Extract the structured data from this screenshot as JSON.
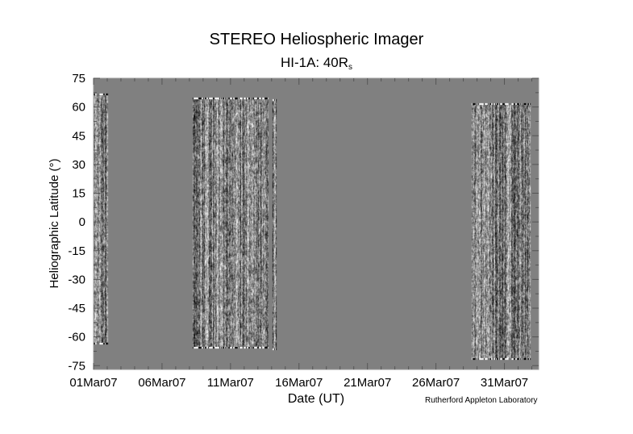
{
  "chart_data": {
    "type": "heatmap",
    "title": "STEREO Heliospheric Imager",
    "subtitle_main": "HI-1A: 40R",
    "subtitle_sub": "s",
    "xlabel": "Date (UT)",
    "ylabel": "Heliographic Latitude (°)",
    "x_unit": "days since 01Mar07",
    "xlim": [
      0,
      32.5
    ],
    "ylim": [
      -77,
      75
    ],
    "x_ticks": [
      {
        "value": 0,
        "label": "01Mar07"
      },
      {
        "value": 5,
        "label": "06Mar07"
      },
      {
        "value": 10,
        "label": "11Mar07"
      },
      {
        "value": 15,
        "label": "16Mar07"
      },
      {
        "value": 20,
        "label": "21Mar07"
      },
      {
        "value": 25,
        "label": "26Mar07"
      },
      {
        "value": 30,
        "label": "31Mar07"
      }
    ],
    "y_ticks": [
      75,
      60,
      45,
      30,
      15,
      0,
      -15,
      -30,
      -45,
      -60,
      -75
    ],
    "background_color": "#808080",
    "data_blocks": [
      {
        "start_day": 0.0,
        "end_day": 1.05,
        "lat_min": -64,
        "lat_max": 67
      },
      {
        "start_day": 7.25,
        "end_day": 12.8,
        "lat_min": -66,
        "lat_max": 65
      },
      {
        "start_day": 13.1,
        "end_day": 13.35,
        "lat_min": -67,
        "lat_max": 64
      },
      {
        "start_day": 27.6,
        "end_day": 31.9,
        "lat_min": -72,
        "lat_max": 62
      }
    ],
    "credit": "Rutherford Appleton Laboratory"
  }
}
